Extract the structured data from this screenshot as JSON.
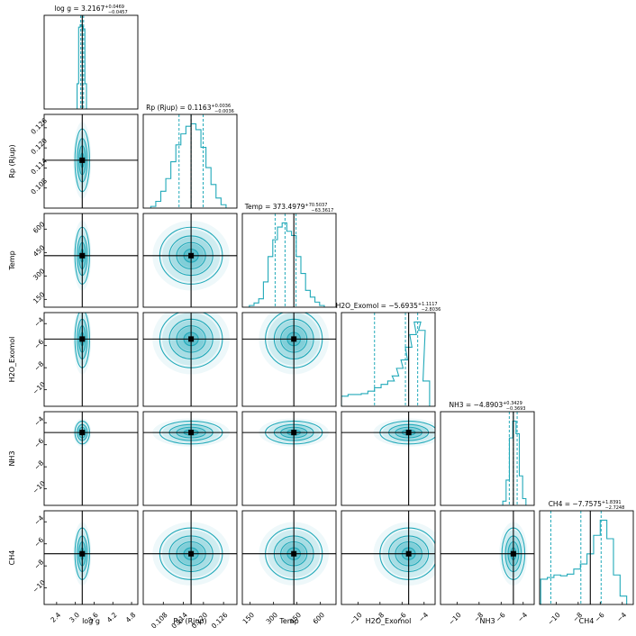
{
  "chart_data": {
    "type": "corner",
    "colors": {
      "hist": "#21a9b9",
      "quantile": "#21a9b9",
      "truth": "#000000",
      "fill": "#21a9b9"
    },
    "parameters": [
      {
        "key": "logg",
        "label": "log g",
        "title": "log g = 3.2167",
        "err_plus": "+0.0469",
        "err_minus": "−0.0457",
        "range": [
          2.0,
          5.0
        ],
        "ticks": [
          2.4,
          3.0,
          3.6,
          4.2,
          4.8
        ],
        "tick_labels": [
          "2.4",
          "3.0",
          "3.6",
          "4.2",
          "4.8"
        ],
        "median": 3.2167,
        "q16": 3.171,
        "q84": 3.2636,
        "truth": 3.22,
        "contour_sigma": 0.09,
        "hist_x": [
          3.08,
          3.13,
          3.18,
          3.23,
          3.28,
          3.33
        ],
        "hist_y": [
          0.3,
          0.97,
          1.0,
          0.98,
          0.95,
          0.3
        ]
      },
      {
        "key": "rp",
        "label": "Rp (Rjup)",
        "title": "Rp (Rjup) = 0.1163",
        "err_plus": "+0.0036",
        "err_minus": "−0.0036",
        "range": [
          0.102,
          0.13
        ],
        "ticks": [
          0.108,
          0.114,
          0.12,
          0.126
        ],
        "tick_labels": [
          "0.108",
          "0.114",
          "0.120",
          "0.126"
        ],
        "median": 0.1163,
        "q16": 0.1127,
        "q84": 0.1199,
        "truth": 0.1163,
        "contour_sigma": 0.0036,
        "hist_x": [
          0.105,
          0.1065,
          0.108,
          0.1095,
          0.111,
          0.1125,
          0.114,
          0.1155,
          0.117,
          0.1185,
          0.12,
          0.1215,
          0.123,
          0.1245,
          0.126
        ],
        "hist_y": [
          0.02,
          0.08,
          0.2,
          0.35,
          0.55,
          0.75,
          0.88,
          0.97,
          1.0,
          0.93,
          0.72,
          0.48,
          0.28,
          0.12,
          0.04
        ]
      },
      {
        "key": "temp",
        "label": "Temp",
        "title": "Temp = 373.4979",
        "err_plus": "+70.5037",
        "err_minus": "−63.3617",
        "range": [
          100,
          700
        ],
        "ticks": [
          150,
          300,
          450,
          600
        ],
        "tick_labels": [
          "150",
          "300",
          "450",
          "600"
        ],
        "median": 373.5,
        "q16": 310.1,
        "q84": 444.0,
        "truth": 430,
        "contour_sigma": 70,
        "hist_x": [
          160,
          190,
          220,
          250,
          280,
          310,
          340,
          370,
          400,
          430,
          460,
          490,
          520,
          550,
          580,
          610
        ],
        "hist_y": [
          0.02,
          0.05,
          0.1,
          0.3,
          0.6,
          0.8,
          0.95,
          1.0,
          0.9,
          0.85,
          0.6,
          0.4,
          0.2,
          0.12,
          0.06,
          0.02
        ]
      },
      {
        "key": "h2o",
        "label": "H2O_Exomol",
        "title": "H2O_Exomol = −5.6935",
        "err_plus": "+1.1117",
        "err_minus": "−2.8036",
        "range": [
          -11.5,
          -3.0
        ],
        "ticks": [
          -10,
          -8,
          -6,
          -4
        ],
        "tick_labels": [
          "−10",
          "−8",
          "−6",
          "−4"
        ],
        "median": -5.6935,
        "q16": -8.4971,
        "q84": -4.5818,
        "truth": -5.4,
        "contour_sigma": 1.0,
        "hist_x": [
          -11.2,
          -10.6,
          -10.0,
          -9.4,
          -8.8,
          -8.2,
          -7.6,
          -7.0,
          -6.6,
          -6.2,
          -5.8,
          -5.4,
          -5.0,
          -4.6,
          -4.2,
          -3.8
        ],
        "hist_y": [
          0.12,
          0.14,
          0.14,
          0.15,
          0.18,
          0.22,
          0.26,
          0.3,
          0.36,
          0.45,
          0.55,
          0.7,
          0.85,
          1.0,
          0.9,
          0.3
        ]
      },
      {
        "key": "nh3",
        "label": "NH3",
        "title": "NH3 = −4.8903",
        "err_plus": "+0.3429",
        "err_minus": "−0.3693",
        "range": [
          -11.5,
          -3.0
        ],
        "ticks": [
          -10,
          -8,
          -6,
          -4
        ],
        "tick_labels": [
          "−10",
          "−8",
          "−6",
          "−4"
        ],
        "median": -4.8903,
        "q16": -5.2596,
        "q84": -4.5474,
        "truth": -4.89,
        "contour_sigma": 0.4,
        "hist_x": [
          -5.7,
          -5.4,
          -5.1,
          -4.8,
          -4.5,
          -4.2,
          -3.9
        ],
        "hist_y": [
          0.05,
          0.3,
          0.8,
          1.0,
          0.85,
          0.35,
          0.08
        ]
      },
      {
        "key": "ch4",
        "label": "CH4",
        "title": "CH4 = −7.7575",
        "err_plus": "+1.8391",
        "err_minus": "−2.7248",
        "range": [
          -11.5,
          -3.0
        ],
        "ticks": [
          -10,
          -8,
          -6,
          -4
        ],
        "tick_labels": [
          "−10",
          "−8",
          "−6",
          "−4"
        ],
        "median": -7.7575,
        "q16": -10.4823,
        "q84": -5.9184,
        "truth": -6.9,
        "contour_sigma": 0.9,
        "hist_x": [
          -11.1,
          -10.5,
          -9.9,
          -9.3,
          -8.7,
          -8.1,
          -7.5,
          -6.9,
          -6.3,
          -5.7,
          -5.1,
          -4.5,
          -3.9
        ],
        "hist_y": [
          0.3,
          0.32,
          0.35,
          0.34,
          0.36,
          0.42,
          0.48,
          0.6,
          0.82,
          1.0,
          0.78,
          0.35,
          0.1
        ]
      }
    ]
  }
}
